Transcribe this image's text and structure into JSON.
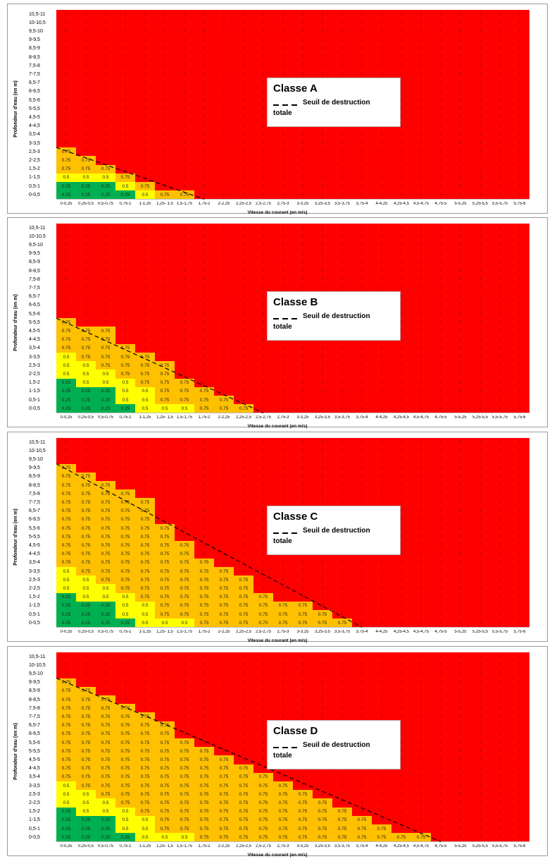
{
  "colors": {
    "red": "#ff0000",
    "orange": "#ffc000",
    "yellow": "#ffff00",
    "green": "#00b050"
  },
  "y_categories": [
    "0-0,5",
    "0,5-1",
    "1-1,5",
    "1,5-2",
    "2-2,5",
    "2,5-3",
    "3-3,5",
    "3,5-4",
    "4-4,5",
    "4,5-5",
    "5-5,5",
    "5,5-6",
    "6-6,5",
    "6,5-7",
    "7-7,5",
    "7,5-8",
    "8-8,5",
    "8,5-9",
    "9-9,5",
    "9,5-10",
    "10-10,5",
    "10,5-11"
  ],
  "x_categories": [
    "0-0,25",
    "0,25-0,5",
    "0,5-0,75",
    "0,75-1",
    "1-1,25",
    "1,25- 1,5",
    "1,5-1,75",
    "1,75-2",
    "2-2,25",
    "2,25-2,5",
    "2,5-2,75",
    "2,75-3",
    "3-3,25",
    "3,25-3,5",
    "3,5-3,75",
    "3,75-4",
    "4-4,25",
    "4,25-4,5",
    "4,5-4,75",
    "4,75-5",
    "5-5,25",
    "5,25-5,5",
    "5,5-5,75",
    "5,75-6"
  ],
  "xlabel": "Vitesse du courant (en m/s)",
  "ylabel": "Profondeur d'eau (en m)",
  "legend_line": "Seuil de destruction",
  "legend_line2": "totale",
  "chart_data": [
    {
      "type": "heatmap",
      "title": "Classe A",
      "rows": [
        [
          "0.25",
          "0.25",
          "0.25",
          "0.25",
          "0.5",
          "0.75",
          "0.75"
        ],
        [
          "0.25",
          "0.25",
          "0.25",
          "0.5",
          "0.75"
        ],
        [
          "0.5",
          "0.5",
          "0.5",
          "0.75"
        ],
        [
          "0.75",
          "0.75",
          "0.75"
        ],
        [
          "0.75",
          "0.75"
        ],
        [
          "0.75"
        ]
      ],
      "default_value": "1"
    },
    {
      "type": "heatmap",
      "title": "Classe B",
      "rows": [
        [
          "0.25",
          "0.25",
          "0.25",
          "0.25",
          "0.5",
          "0.5",
          "0.5",
          "0.75",
          "0.75",
          "0.75"
        ],
        [
          "0.25",
          "0.25",
          "0.25",
          "0.5",
          "0.5",
          "0.75",
          "0.75",
          "0.75",
          "0.75"
        ],
        [
          "0.25",
          "0.25",
          "0.25",
          "0.5",
          "0.5",
          "0.75",
          "0.75",
          "0.75"
        ],
        [
          "0.25",
          "0.5",
          "0.5",
          "0.5",
          "0.75",
          "0.75",
          "0.75"
        ],
        [
          "0.5",
          "0.5",
          "0.5",
          "0.75",
          "0.75",
          "0.75"
        ],
        [
          "0.5",
          "0.5",
          "0.75",
          "0.75",
          "0.75",
          "0.75"
        ],
        [
          "0.5",
          "0.75",
          "0.75",
          "0.75",
          "0.75"
        ],
        [
          "0.75",
          "0.75",
          "0.75",
          "0.75"
        ],
        [
          "0.75",
          "0.75",
          "0.75"
        ],
        [
          "0.75",
          "0.75",
          "0.75"
        ],
        [
          "0.75"
        ]
      ],
      "default_value": "1"
    },
    {
      "type": "heatmap",
      "title": "Classe C",
      "rows": [
        [
          "0.25",
          "0.25",
          "0.25",
          "0.25",
          "0.5",
          "0.5",
          "0.5",
          "0.75",
          "0.75",
          "0.75",
          "0.75",
          "0.75",
          "0.75",
          "0.75",
          "0.75"
        ],
        [
          "0.25",
          "0.25",
          "0.25",
          "0.5",
          "0.5",
          "0.75",
          "0.75",
          "0.75",
          "0.75",
          "0.75",
          "0.75",
          "0.75",
          "0.75",
          "0.75"
        ],
        [
          "0.25",
          "0.25",
          "0.25",
          "0.5",
          "0.5",
          "0.75",
          "0.75",
          "0.75",
          "0.75",
          "0.75",
          "0.75",
          "0.75",
          "0.75"
        ],
        [
          "0.25",
          "0.5",
          "0.5",
          "0.5",
          "0.75",
          "0.75",
          "0.75",
          "0.75",
          "0.75",
          "0.75",
          "0.75"
        ],
        [
          "0.5",
          "0.5",
          "0.5",
          "0.75",
          "0.75",
          "0.75",
          "0.75",
          "0.75",
          "0.75",
          "0.75"
        ],
        [
          "0.5",
          "0.5",
          "0.75",
          "0.75",
          "0.75",
          "0.75",
          "0.75",
          "0.75",
          "0.75",
          "0.75"
        ],
        [
          "0.5",
          "0.75",
          "0.75",
          "0.75",
          "0.75",
          "0.75",
          "0.75",
          "0.75",
          "0.75"
        ],
        [
          "0.75",
          "0.75",
          "0.75",
          "0.75",
          "0.75",
          "0.75",
          "0.75",
          "0.75"
        ],
        [
          "0.75",
          "0.75",
          "0.75",
          "0.75",
          "0.75",
          "0.75",
          "0.75"
        ],
        [
          "0.75",
          "0.75",
          "0.75",
          "0.75",
          "0.75",
          "0.75",
          "0.75"
        ],
        [
          "0.75",
          "0.75",
          "0.75",
          "0.75",
          "0.75",
          "0.75"
        ],
        [
          "0.75",
          "0.75",
          "0.75",
          "0.75",
          "0.75",
          "0.75"
        ],
        [
          "0.75",
          "0.75",
          "0.75",
          "0.75",
          "0.75"
        ],
        [
          "0.75",
          "0.75",
          "0.75",
          "0.75",
          "0.75"
        ],
        [
          "0.75",
          "0.75",
          "0.75",
          "0.75",
          "0.75"
        ],
        [
          "0.75",
          "0.75",
          "0.75",
          "0.75"
        ],
        [
          "0.75",
          "0.75",
          "0.75"
        ],
        [
          "0.75",
          "0.75"
        ],
        [
          "0.75"
        ]
      ],
      "default_value": "1"
    },
    {
      "type": "heatmap",
      "title": "Classe D",
      "rows": [
        [
          "0.25",
          "0.25",
          "0.25",
          "0.25",
          "0.5",
          "0.5",
          "0.5",
          "0.75",
          "0.75",
          "0.75",
          "0.75",
          "0.75",
          "0.75",
          "0.75",
          "0.75",
          "0.75",
          "0.75",
          "0.75",
          "0.75"
        ],
        [
          "0.25",
          "0.25",
          "0.25",
          "0.5",
          "0.5",
          "0.75",
          "0.75",
          "0.75",
          "0.75",
          "0.75",
          "0.75",
          "0.75",
          "0.75",
          "0.75",
          "0.75",
          "0.75",
          "0.75"
        ],
        [
          "0.25",
          "0.25",
          "0.25",
          "0.5",
          "0.5",
          "0.75",
          "0.75",
          "0.75",
          "0.75",
          "0.75",
          "0.75",
          "0.75",
          "0.75",
          "0.75",
          "0.75",
          "0.75"
        ],
        [
          "0.25",
          "0.5",
          "0.5",
          "0.5",
          "0.75",
          "0.75",
          "0.75",
          "0.75",
          "0.75",
          "0.75",
          "0.75",
          "0.75",
          "0.75",
          "0.75",
          "0.75"
        ],
        [
          "0.5",
          "0.5",
          "0.5",
          "0.75",
          "0.75",
          "0.75",
          "0.75",
          "0.75",
          "0.75",
          "0.75",
          "0.75",
          "0.75",
          "0.75",
          "0.75"
        ],
        [
          "0.5",
          "0.5",
          "0.75",
          "0.75",
          "0.75",
          "0.75",
          "0.75",
          "0.75",
          "0.75",
          "0.75",
          "0.75",
          "0.75",
          "0.75"
        ],
        [
          "0.5",
          "0.75",
          "0.75",
          "0.75",
          "0.75",
          "0.75",
          "0.75",
          "0.75",
          "0.75",
          "0.75",
          "0.75",
          "0.75"
        ],
        [
          "0.75",
          "0.75",
          "0.75",
          "0.75",
          "0.75",
          "0.75",
          "0.75",
          "0.75",
          "0.75",
          "0.75",
          "0.75"
        ],
        [
          "0.75",
          "0.75",
          "0.75",
          "0.75",
          "0.75",
          "0.75",
          "0.75",
          "0.75",
          "0.75",
          "0.75"
        ],
        [
          "0.75",
          "0.75",
          "0.75",
          "0.75",
          "0.75",
          "0.75",
          "0.75",
          "0.75",
          "0.75"
        ],
        [
          "0.75",
          "0.75",
          "0.75",
          "0.75",
          "0.75",
          "0.75",
          "0.75",
          "0.75"
        ],
        [
          "0.75",
          "0.75",
          "0.75",
          "0.75",
          "0.75",
          "0.75",
          "0.75"
        ],
        [
          "0.75",
          "0.75",
          "0.75",
          "0.75",
          "0.75",
          "0.75"
        ],
        [
          "0.75",
          "0.75",
          "0.75",
          "0.75",
          "0.75",
          "0.75"
        ],
        [
          "0.75",
          "0.75",
          "0.75",
          "0.75",
          "0.75"
        ],
        [
          "0.75",
          "0.75",
          "0.75",
          "0.75"
        ],
        [
          "0.75",
          "0.75",
          "0.75"
        ],
        [
          "0.75",
          "0.75"
        ],
        [
          "0.75"
        ]
      ],
      "default_value": "1"
    }
  ]
}
